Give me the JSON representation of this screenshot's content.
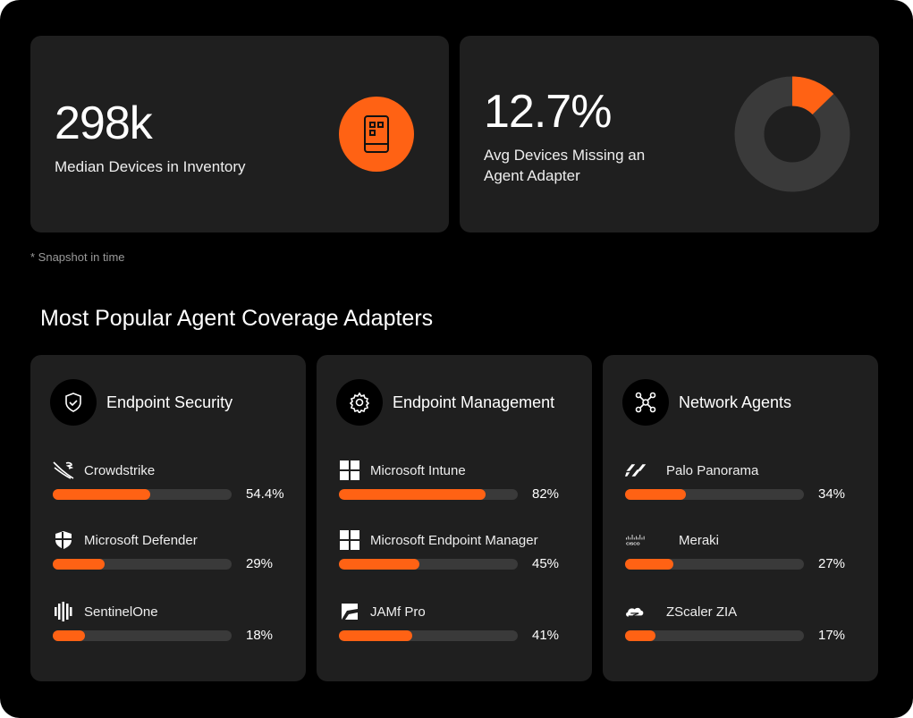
{
  "colors": {
    "accent": "#ff6214",
    "card": "#1f1f1f",
    "track": "#3a3a3a"
  },
  "stats": [
    {
      "value": "298k",
      "label": "Median Devices in Inventory",
      "icon": "device-icon"
    },
    {
      "value": "12.7%",
      "label_line1": "Avg Devices Missing an",
      "label_line2": "Agent Adapter",
      "donut_fraction": 0.127
    }
  ],
  "note": "* Snapshot in time",
  "section_title": "Most Popular Agent Coverage Adapters",
  "categories": [
    {
      "title": "Endpoint Security",
      "icon": "shield-check-icon",
      "items": [
        {
          "name": "Crowdstrike",
          "pct_label": "54.4%",
          "value": 54.4,
          "icon": "crowdstrike-icon"
        },
        {
          "name": "Microsoft Defender",
          "pct_label": "29%",
          "value": 29,
          "icon": "defender-icon"
        },
        {
          "name": "SentinelOne",
          "pct_label": "18%",
          "value": 18,
          "icon": "sentinelone-icon"
        }
      ]
    },
    {
      "title": "Endpoint Management",
      "icon": "gear-icon",
      "items": [
        {
          "name": "Microsoft Intune",
          "pct_label": "82%",
          "value": 82,
          "icon": "windows-icon"
        },
        {
          "name": "Microsoft Endpoint Manager",
          "pct_label": "45%",
          "value": 45,
          "icon": "windows-icon"
        },
        {
          "name": "JAMf Pro",
          "pct_label": "41%",
          "value": 41,
          "icon": "jamf-icon"
        }
      ]
    },
    {
      "title": "Network Agents",
      "icon": "network-icon",
      "items": [
        {
          "name": "Palo Panorama",
          "pct_label": "34%",
          "value": 34,
          "icon": "palo-alto-icon"
        },
        {
          "name": "Meraki",
          "pct_label": "27%",
          "value": 27,
          "icon": "cisco-icon"
        },
        {
          "name": "ZScaler ZIA",
          "pct_label": "17%",
          "value": 17,
          "icon": "zscaler-icon"
        }
      ]
    }
  ]
}
